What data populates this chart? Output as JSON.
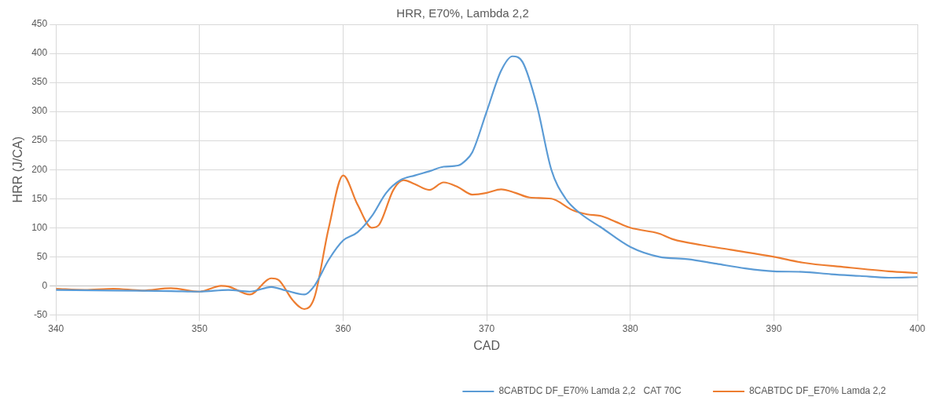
{
  "chart_data": {
    "type": "line",
    "title": "HRR, E70%, Lambda 2,2",
    "xlabel": "CAD",
    "ylabel": "HRR (J/CA)",
    "xlim": [
      340,
      400
    ],
    "xticks": [
      340,
      350,
      360,
      370,
      380,
      390,
      400
    ],
    "ylim": [
      -50,
      450
    ],
    "yticks": [
      -50,
      0,
      50,
      100,
      150,
      200,
      250,
      300,
      350,
      400,
      450
    ],
    "grid": true,
    "legend": "bottom right",
    "marker": "none",
    "line_style": "solid",
    "series": [
      {
        "name": "8CABTDC DF_E70% Lamda 2,2   CAT 70C",
        "color": "#5b9bd5",
        "x": [
          340,
          344,
          348,
          350,
          352,
          353.5,
          355,
          356,
          357.3,
          358,
          359,
          360,
          361,
          362,
          363,
          364,
          365,
          366,
          367,
          368,
          368.5,
          369,
          370,
          371,
          371.8,
          372.5,
          373.5,
          374.5,
          375.5,
          376.5,
          378,
          380,
          382,
          384,
          386,
          388,
          390,
          392,
          394,
          396,
          398,
          400
        ],
        "values": [
          -7,
          -8,
          -9,
          -10,
          -7,
          -10,
          -2,
          -8,
          -15,
          0,
          45,
          78,
          92,
          120,
          160,
          182,
          190,
          197,
          205,
          207,
          215,
          230,
          300,
          370,
          395,
          385,
          310,
          200,
          150,
          125,
          100,
          67,
          50,
          46,
          38,
          30,
          25,
          24,
          20,
          17,
          14,
          15
        ]
      },
      {
        "name": "8CABTDC DF_E70% Lamda 2,2",
        "color": "#ed7d31",
        "x": [
          340,
          342,
          344,
          346,
          348,
          350,
          351.5,
          352,
          353.5,
          355,
          355.5,
          356.5,
          357.3,
          358,
          359,
          360,
          361,
          362,
          362.5,
          363.5,
          364.2,
          365,
          366,
          367,
          368,
          369,
          370,
          371,
          372,
          373,
          374.5,
          376,
          377,
          378,
          379,
          380,
          382,
          383,
          385,
          387,
          390,
          392,
          395,
          398,
          400
        ],
        "values": [
          -5,
          -7,
          -5,
          -8,
          -4,
          -10,
          0,
          -1,
          -15,
          13,
          10,
          -25,
          -40,
          -20,
          100,
          190,
          140,
          100,
          105,
          165,
          182,
          175,
          165,
          178,
          170,
          157,
          160,
          166,
          160,
          152,
          150,
          130,
          123,
          120,
          110,
          100,
          90,
          80,
          70,
          62,
          50,
          40,
          32,
          25,
          22
        ]
      }
    ]
  }
}
